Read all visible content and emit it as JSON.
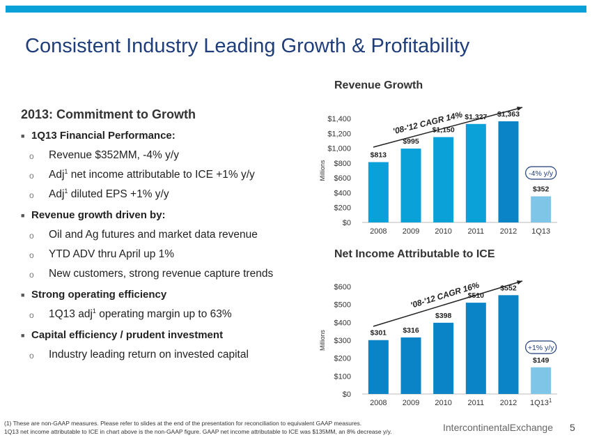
{
  "title": "Consistent Industry Leading Growth & Profitability",
  "colors": {
    "accent": "#0aa0d8",
    "title": "#1f3d7a",
    "bar_dark": "#0a84c6",
    "bar_light": "#7ec5e8",
    "bar_mid": "#0aa0d8"
  },
  "left_panel": {
    "heading": "2013: Commitment to Growth",
    "b1": {
      "label": "1Q13 Financial Performance:",
      "s1": "Revenue $352MM, -4% y/y",
      "s2_pre": "Adj",
      "s2_sup": "1",
      "s2_post": " net income attributable to ICE +1% y/y",
      "s3_pre": "Adj",
      "s3_sup": "1",
      "s3_post": " diluted EPS +1% y/y"
    },
    "b2": {
      "label": "Revenue growth driven by:",
      "s1": "Oil and Ag futures and market data revenue",
      "s2": "YTD ADV thru April up 1%",
      "s3": "New customers, strong revenue capture trends"
    },
    "b3": {
      "label": "Strong operating efficiency",
      "s1_pre": "1Q13 adj",
      "s1_sup": "1",
      "s1_post": " operating margin up to 63%"
    },
    "b4": {
      "label": "Capital efficiency / prudent investment",
      "s1": "Industry leading return on invested capital"
    }
  },
  "chart_data": [
    {
      "type": "bar",
      "title": "Revenue Growth",
      "ylabel": "Millions",
      "ylim": [
        0,
        1400
      ],
      "yticks": [
        "$0",
        "$200",
        "$400",
        "$600",
        "$800",
        "$1,000",
        "$1,200",
        "$1,400"
      ],
      "categories": [
        "2008",
        "2009",
        "2010",
        "2011",
        "2012",
        "1Q13"
      ],
      "values": [
        813,
        995,
        1150,
        1327,
        1363,
        352
      ],
      "value_labels": [
        "$813",
        "$995",
        "$1,150",
        "$1,327",
        "$1,363",
        "$352"
      ],
      "trend_label": "'08-'12 CAGR 14%",
      "badge": "-4% y/y"
    },
    {
      "type": "bar",
      "title": "Net Income Attributable to ICE",
      "ylabel": "Millions",
      "ylim": [
        0,
        600
      ],
      "yticks": [
        "$0",
        "$100",
        "$200",
        "$300",
        "$400",
        "$500",
        "$600"
      ],
      "categories": [
        "2008",
        "2009",
        "2010",
        "2011",
        "2012",
        "1Q13"
      ],
      "last_category_sup": "1",
      "values": [
        301,
        316,
        398,
        510,
        552,
        149
      ],
      "value_labels": [
        "$301",
        "$316",
        "$398",
        "$510",
        "$552",
        "$149"
      ],
      "trend_label": "'08-'12 CAGR 16%",
      "badge": "+1% y/y"
    }
  ],
  "footnote": {
    "line1": "(1)  These are non-GAAP measures.  Please refer to slides at the end of the presentation for reconciliation to equivalent GAAP measures.",
    "line2": "1Q13 net income attributable to ICE in chart above is the non-GAAP figure. GAAP net income attributable to ICE was $135MM, an 8% decrease y/y."
  },
  "brand": "IntercontinentalExchange",
  "page_number": "5"
}
